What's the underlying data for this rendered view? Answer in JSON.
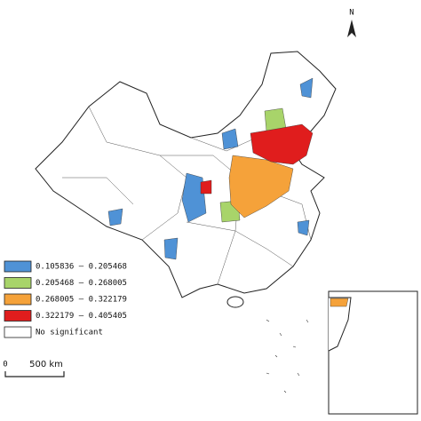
{
  "north": "N",
  "legend": {
    "items": [
      {
        "label": "0.105836 — 0.205468",
        "color": "#4f92d6"
      },
      {
        "label": "0.205468 — 0.268005",
        "color": "#a8d46a"
      },
      {
        "label": "0.268005 — 0.322179",
        "color": "#f5a23a"
      },
      {
        "label": "0.322179 — 0.405405",
        "color": "#e01d1d"
      },
      {
        "label": "No significant",
        "color": "#ffffff"
      }
    ]
  },
  "scale_bar": {
    "start": "0",
    "end": "500 km"
  }
}
